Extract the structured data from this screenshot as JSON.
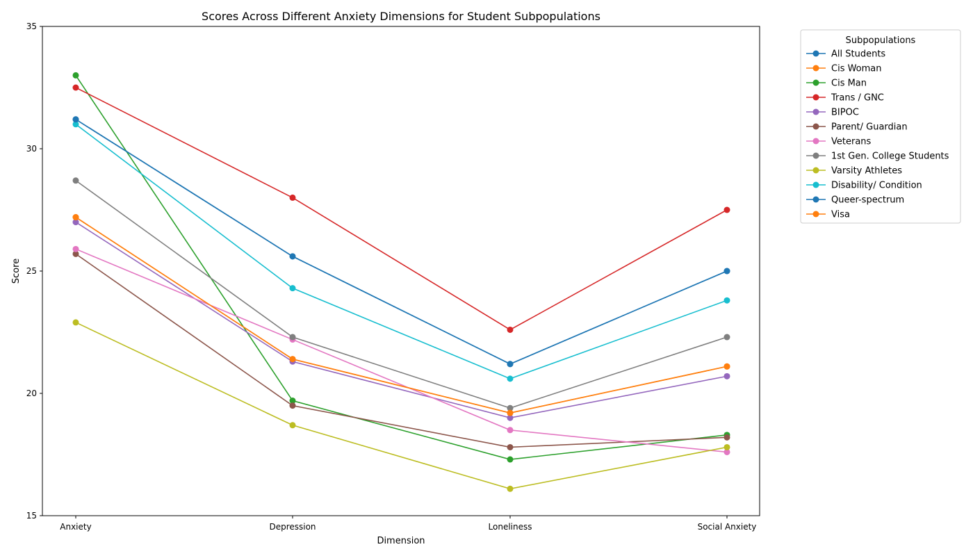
{
  "chart_data": {
    "type": "line",
    "title": "Scores Across Different Anxiety Dimensions for Student Subpopulations",
    "xlabel": "Dimension",
    "ylabel": "Score",
    "categories": [
      "Anxiety",
      "Depression",
      "Loneliness",
      "Social Anxiety"
    ],
    "ylim": [
      15,
      35
    ],
    "yticks": [
      15,
      20,
      25,
      30,
      35
    ],
    "grid": false,
    "legend": {
      "title": "Subpopulations",
      "placement": "outside-top-right"
    },
    "series": [
      {
        "name": "All Students",
        "color": "#1f77b4",
        "values": [
          31.2,
          25.6,
          21.2,
          25.0
        ]
      },
      {
        "name": "Cis Woman",
        "color": "#ff7f0e",
        "values": [
          27.2,
          21.4,
          19.2,
          21.1
        ]
      },
      {
        "name": "Cis Man",
        "color": "#2ca02c",
        "values": [
          33.0,
          19.7,
          17.3,
          18.3
        ]
      },
      {
        "name": "Trans / GNC",
        "color": "#d62728",
        "values": [
          32.5,
          28.0,
          22.6,
          27.5
        ]
      },
      {
        "name": "BIPOC",
        "color": "#9467bd",
        "values": [
          27.0,
          21.3,
          19.0,
          20.7
        ]
      },
      {
        "name": "Parent/ Guardian",
        "color": "#8c564b",
        "values": [
          25.7,
          19.5,
          17.8,
          18.2
        ]
      },
      {
        "name": "Veterans",
        "color": "#e377c2",
        "values": [
          25.9,
          22.2,
          18.5,
          17.6
        ]
      },
      {
        "name": "1st Gen. College Students",
        "color": "#7f7f7f",
        "values": [
          28.7,
          22.3,
          19.4,
          22.3
        ]
      },
      {
        "name": "Varsity Athletes",
        "color": "#bcbd22",
        "values": [
          22.9,
          18.7,
          16.1,
          17.8
        ]
      },
      {
        "name": "Disability/ Condition",
        "color": "#17becf",
        "values": [
          31.0,
          24.3,
          20.6,
          23.8
        ]
      },
      {
        "name": "Queer-spectrum",
        "color": "#1f77b4",
        "values": [
          31.2,
          25.6,
          21.2,
          25.0
        ]
      },
      {
        "name": "Visa",
        "color": "#ff7f0e",
        "values": [
          27.2,
          21.4,
          19.2,
          21.1
        ]
      }
    ]
  }
}
